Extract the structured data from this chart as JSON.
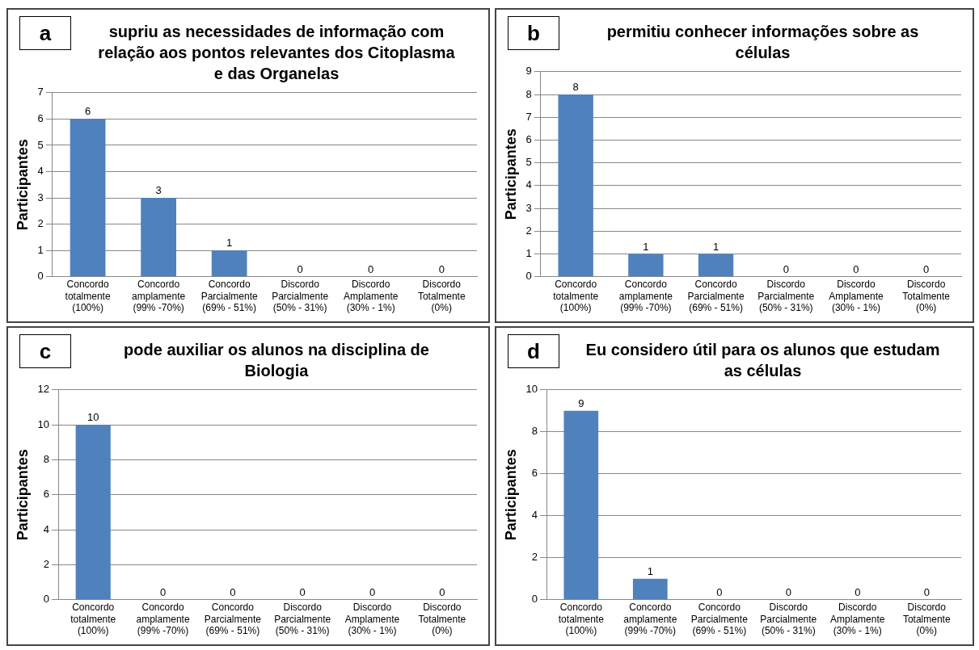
{
  "chart_data": [
    {
      "type": "bar",
      "title": "supriu as necessidades de informação com relação aos pontos relevantes dos Citoplasma e das Organelas",
      "annotations": [
        "a"
      ],
      "ylabel": "Participantes",
      "categories": [
        "Concordo\ntotalmente\n(100%)",
        "Concordo\namplamente\n(99% -70%)",
        "Concordo\nParcialmente\n(69% - 51%)",
        "Discordo\nParcialmente\n(50% - 31%)",
        "Discordo\nAmplamente\n(30% - 1%)",
        "Discordo\nTotalmente\n(0%)"
      ],
      "values": [
        6,
        3,
        1,
        0,
        0,
        0
      ],
      "color": "#4f81bd",
      "ylim": [
        0,
        7
      ],
      "yticks": [
        0,
        1,
        2,
        3,
        4,
        5,
        6,
        7
      ],
      "grid": "y",
      "data_labels": true
    },
    {
      "type": "bar",
      "title": "permitiu conhecer informações sobre as células",
      "annotations": [
        "b"
      ],
      "ylabel": "Participantes",
      "categories": [
        "Concordo\ntotalmente\n(100%)",
        "Concordo\namplamente\n(99% -70%)",
        "Concordo\nParcialmente\n(69% - 51%)",
        "Discordo\nParcialmente\n(50% - 31%)",
        "Discordo\nAmplamente\n(30% - 1%)",
        "Discordo\nTotalmente\n(0%)"
      ],
      "values": [
        8,
        1,
        1,
        0,
        0,
        0
      ],
      "color": "#4f81bd",
      "ylim": [
        0,
        9
      ],
      "yticks": [
        0,
        1,
        2,
        3,
        4,
        5,
        6,
        7,
        8,
        9
      ],
      "grid": "y",
      "data_labels": true
    },
    {
      "type": "bar",
      "title": "pode auxiliar os alunos na disciplina de Biologia",
      "annotations": [
        "c"
      ],
      "ylabel": "Participantes",
      "categories": [
        "Concordo\ntotalmente\n(100%)",
        "Concordo\namplamente\n(99% -70%)",
        "Concordo\nParcialmente\n(69% - 51%)",
        "Discordo\nParcialmente\n(50% - 31%)",
        "Discordo\nAmplamente\n(30% - 1%)",
        "Discordo\nTotalmente\n(0%)"
      ],
      "values": [
        10,
        0,
        0,
        0,
        0,
        0
      ],
      "color": "#4f81bd",
      "ylim": [
        0,
        12
      ],
      "yticks": [
        0,
        2,
        4,
        6,
        8,
        10,
        12
      ],
      "grid": "y",
      "data_labels": true
    },
    {
      "type": "bar",
      "title": "Eu considero útil para os alunos que estudam as células",
      "annotations": [
        "d"
      ],
      "ylabel": "Participantes",
      "categories": [
        "Concordo\ntotalmente\n(100%)",
        "Concordo\namplamente\n(99% -70%)",
        "Concordo\nParcialmente\n(69% - 51%)",
        "Discordo\nParcialmente\n(50% - 31%)",
        "Discordo\nAmplamente\n(30% - 1%)",
        "Discordo\nTotalmente\n(0%)"
      ],
      "values": [
        9,
        1,
        0,
        0,
        0,
        0
      ],
      "color": "#4f81bd",
      "ylim": [
        0,
        10
      ],
      "yticks": [
        0,
        2,
        4,
        6,
        8,
        10
      ],
      "grid": "y",
      "data_labels": true
    }
  ]
}
